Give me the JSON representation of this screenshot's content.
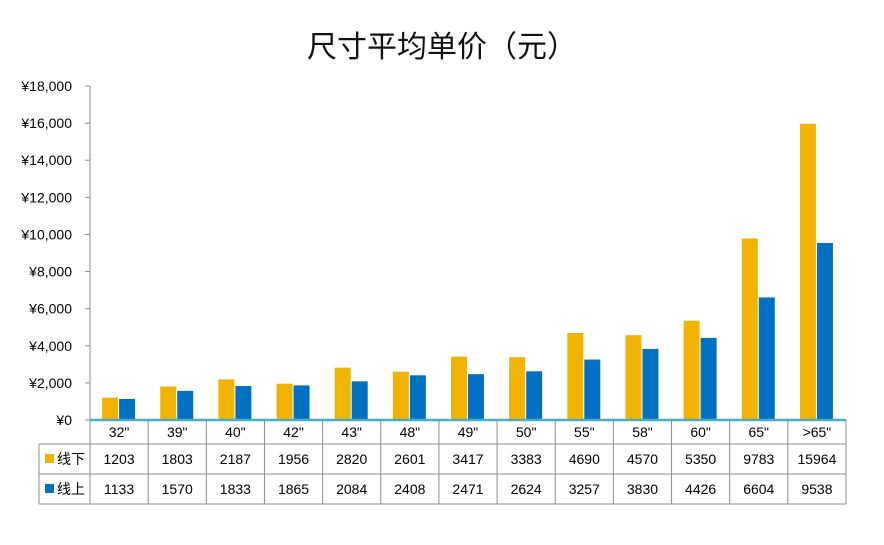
{
  "chart_data": {
    "type": "bar",
    "title": "尺寸平均单价（元）",
    "categories": [
      "32\"",
      "39\"",
      "40\"",
      "42\"",
      "43\"",
      "48\"",
      "49\"",
      "50\"",
      "55\"",
      "58\"",
      "60\"",
      "65\"",
      ">65\""
    ],
    "series": [
      {
        "name": "线下",
        "color": "#F0B400",
        "values": [
          1203,
          1803,
          2187,
          1956,
          2820,
          2601,
          3417,
          3383,
          4690,
          4570,
          5350,
          9783,
          15964
        ]
      },
      {
        "name": "线上",
        "color": "#0070C0",
        "values": [
          1133,
          1570,
          1833,
          1865,
          2084,
          2408,
          2471,
          2624,
          3257,
          3830,
          4426,
          6604,
          9538
        ]
      }
    ],
    "ylim": [
      0,
      18000
    ],
    "yticks": [
      "¥0",
      "¥2,000",
      "¥4,000",
      "¥6,000",
      "¥8,000",
      "¥10,000",
      "¥12,000",
      "¥14,000",
      "¥16,000",
      "¥18,000"
    ],
    "grid": false,
    "legend": "data-table",
    "axis_color": "#4BACC6",
    "table_border_color": "#8C8C8C"
  }
}
